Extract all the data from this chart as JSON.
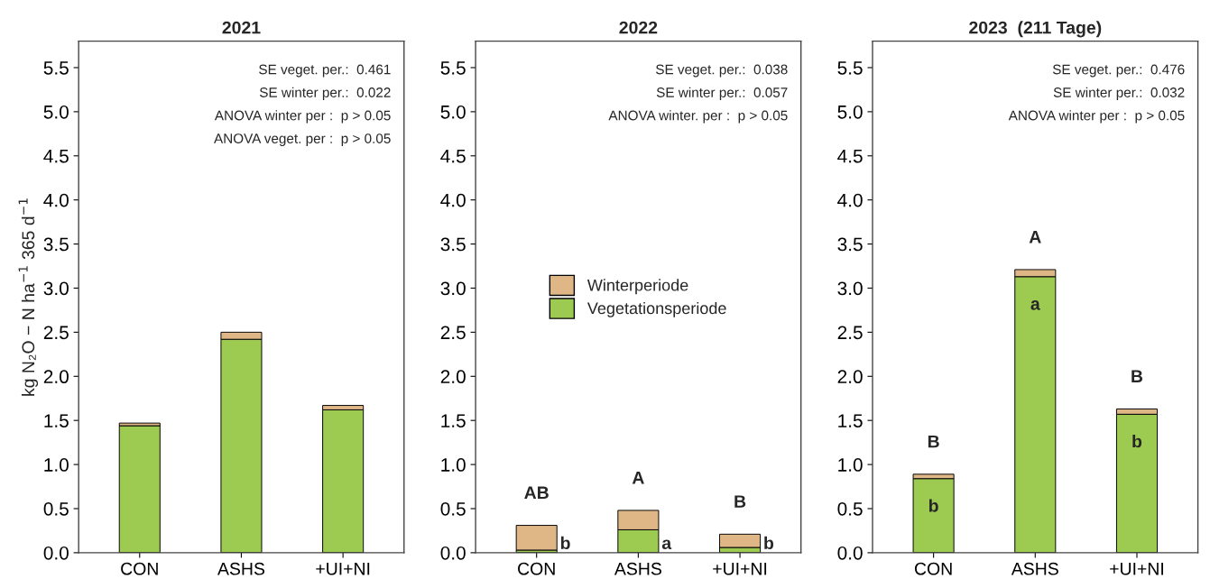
{
  "chart_data": [
    {
      "type": "bar",
      "title": "2021",
      "ylabel": "kg N₂O − N ha$^{−1}$ 365 d$^{−1}$",
      "categories": [
        "CON",
        "ASHS",
        "+UI+NI"
      ],
      "stacked": true,
      "series": [
        {
          "color": "#9dcb52",
          "values": [
            1.44,
            2.42,
            1.62
          ]
        },
        {
          "color": "#dfb787",
          "values": [
            0.03,
            0.08,
            0.05
          ]
        }
      ],
      "ylim": [
        0,
        5.8
      ],
      "yticks": [
        {
          "value": 0,
          "label": "0.0"
        },
        0.5,
        {
          "value": 1,
          "label": "1.0"
        },
        1.5,
        {
          "value": 2,
          "label": "2.0"
        },
        2.5,
        {
          "value": 3,
          "label": "3.0"
        },
        3.5,
        {
          "value": 4,
          "label": "4.0"
        },
        4.5,
        {
          "value": 5,
          "label": "5.0"
        },
        5.5
      ],
      "annotations": [
        "SE veget. per.:  0.461",
        "SE winter per.:  0.022",
        "ANOVA winter per :  p > 0.05",
        "ANOVA veget. per :  p > 0.05"
      ],
      "grid": false
    },
    {
      "type": "bar",
      "title": "2022",
      "categories": [
        "CON",
        "ASHS",
        "+UI+NI"
      ],
      "stacked": true,
      "legend": "center",
      "series": [
        {
          "name": "Vegetationsperiode",
          "color": "#9dcb52",
          "values": [
            0.03,
            0.26,
            0.06
          ]
        },
        {
          "name": "Winterperiode",
          "color": "#dfb787",
          "values": [
            0.28,
            0.22,
            0.15
          ]
        }
      ],
      "ylim": [
        0,
        5.8
      ],
      "yticks": [
        {
          "value": 0,
          "label": "0.0"
        },
        0.5,
        {
          "value": 1,
          "label": "1.0"
        },
        1.5,
        {
          "value": 2,
          "label": "2.0"
        },
        2.5,
        {
          "value": 3,
          "label": "3.0"
        },
        3.5,
        {
          "value": 4,
          "label": "4.0"
        },
        4.5,
        {
          "value": 5,
          "label": "5.0"
        },
        5.5
      ],
      "annotations": [
        "SE veget. per.:  0.038",
        "SE winter per.:  0.057",
        "ANOVA winter. per :  p > 0.05",
        "AB",
        "A",
        "B",
        "b",
        "a",
        "b"
      ],
      "grid": false
    },
    {
      "type": "bar",
      "title": "2023  (211 Tage)",
      "categories": [
        "CON",
        "ASHS",
        "+UI+NI"
      ],
      "stacked": true,
      "series": [
        {
          "color": "#9dcb52",
          "values": [
            0.84,
            3.13,
            1.57
          ]
        },
        {
          "color": "#dfb787",
          "values": [
            0.05,
            0.08,
            0.06
          ]
        }
      ],
      "ylim": [
        0,
        5.8
      ],
      "yticks": [
        {
          "value": 0,
          "label": "0.0"
        },
        0.5,
        {
          "value": 1,
          "label": "1.0"
        },
        1.5,
        {
          "value": 2,
          "label": "2.0"
        },
        2.5,
        {
          "value": 3,
          "label": "3.0"
        },
        3.5,
        {
          "value": 4,
          "label": "4.0"
        },
        4.5,
        {
          "value": 5,
          "label": "5.0"
        },
        5.5
      ],
      "annotations": [
        "SE veget. per.:  0.476",
        "SE winter per.:  0.032",
        "ANOVA winter per :  p > 0.05",
        "B",
        "A",
        "B",
        "b",
        "a",
        "b"
      ],
      "grid": false
    }
  ]
}
